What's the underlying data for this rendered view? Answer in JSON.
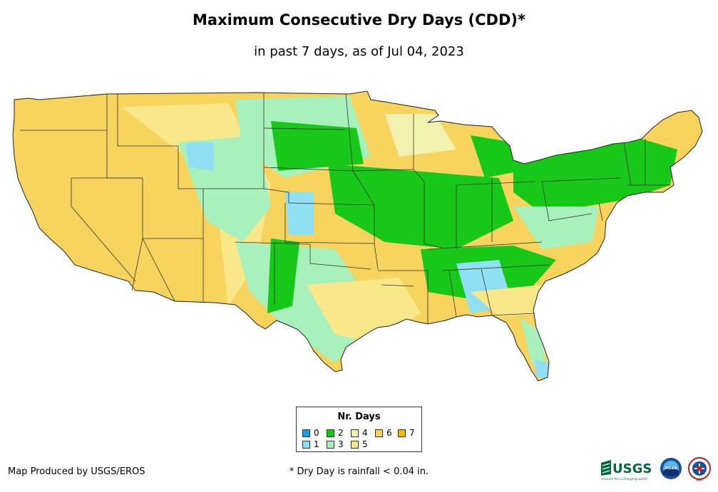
{
  "title": "Maximum Consecutive Dry Days (CDD)*",
  "subtitle": "in past 7 days, as of Jul 04, 2023",
  "legend": {
    "title": "Nr. Days",
    "items": [
      {
        "label": "0",
        "color": "#1a9ee0"
      },
      {
        "label": "1",
        "color": "#8ee0f2"
      },
      {
        "label": "2",
        "color": "#18c818"
      },
      {
        "label": "3",
        "color": "#a8f0bc"
      },
      {
        "label": "4",
        "color": "#f2f2b0"
      },
      {
        "label": "5",
        "color": "#f8e88a"
      },
      {
        "label": "6",
        "color": "#f6d45e"
      },
      {
        "label": "7",
        "color": "#f2b800"
      }
    ]
  },
  "footer": {
    "credit": "Map Produced by USGS/EROS",
    "note": "* Dry Day is rainfall < 0.04 in."
  },
  "logos": {
    "usgs_text": "USGS",
    "usgs_tagline": "science for a changing world",
    "noaa_text": "noaa",
    "nws_text": "NWS"
  }
}
